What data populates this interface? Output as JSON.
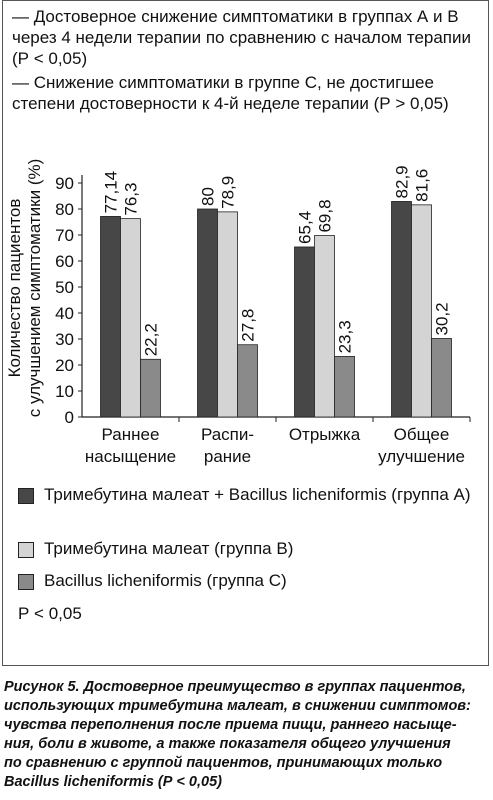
{
  "chart_data": {
    "type": "bar",
    "notes": [
      "— Достоверное снижение симптоматики в группах А и В через 4 недели терапии по сравнению с началом терапии (Р < 0,05)",
      "— Снижение симптоматики в группе С, не достигшее степени достоверности к 4-й неделе терапии (Р > 0,05)"
    ],
    "y_label": [
      "Количество пациентов",
      "с улучшением симптоматики (%)"
    ],
    "categories": [
      [
        "Раннее",
        "насыщение"
      ],
      [
        "Распи-",
        "рание"
      ],
      [
        "Отрыжка"
      ],
      [
        "Общее",
        "улучшение"
      ]
    ],
    "series": [
      {
        "name": "Тримебутина малеат + Bacillus licheniformis (группа А)",
        "color": "#474747",
        "values": [
          77.14,
          80,
          65.4,
          82.9
        ],
        "value_labels": [
          "77,14",
          "80",
          "65,4",
          "82,9"
        ]
      },
      {
        "name": "Тримебутина малеат (группа В)",
        "color": "#d4d4d4",
        "values": [
          76.3,
          78.9,
          69.8,
          81.6
        ],
        "value_labels": [
          "76,3",
          "78,9",
          "69,8",
          "81,6"
        ]
      },
      {
        "name": "Bacillus licheniformis (группа С)",
        "color": "#8a8a8a",
        "values": [
          22.2,
          27.8,
          23.3,
          30.2
        ],
        "value_labels": [
          "22,2",
          "27,8",
          "23,3",
          "30,2"
        ]
      }
    ],
    "ylim": [
      0,
      90
    ],
    "yticks": [
      0,
      10,
      20,
      30,
      40,
      50,
      60,
      70,
      80,
      90
    ],
    "grid": false,
    "p_note": "Р < 0,05",
    "caption": [
      "Рисунок 5. Достоверное преимущество в группах пациентов,",
      "использующих тримебутина малеат, в снижении симптомов:",
      "чувства переполнения после приема пищи, раннего насыще-",
      "ния, боли в животе, а также показателя общего улучшения",
      "по сравнению с группой пациентов, принимающих только",
      "Bacillus licheniformis (Р < 0,05)"
    ]
  }
}
